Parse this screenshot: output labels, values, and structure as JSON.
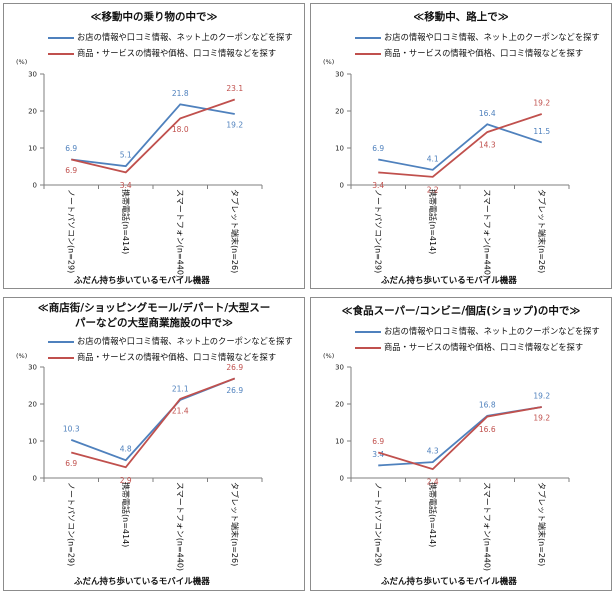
{
  "legend": {
    "s1": "お店の情報や口コミ情報、ネット上のクーポンなどを探す",
    "s2": "商品・サービスの情報や価格、口コミ情報などを探す"
  },
  "colors": {
    "s1": "#4f81bd",
    "s2": "#c0504d"
  },
  "x_title": "ふだん持ち歩いているモバイル機器",
  "chart_data": [
    {
      "type": "line",
      "title": "≪移動中の乗り物の中で≫",
      "ylabel": "(%)",
      "ylim": [
        0,
        30
      ],
      "yticks": [
        0,
        10,
        20,
        30
      ],
      "categories": [
        "ノートパソコン(n=29)",
        "携帯電話(n=414)",
        "スマートフォン(n=440)",
        "タブレット端末(n=26)"
      ],
      "series": [
        {
          "name": "お店の情報や口コミ情報、ネット上のクーポンなどを探す",
          "values": [
            6.9,
            5.1,
            21.8,
            19.2
          ]
        },
        {
          "name": "商品・サービスの情報や価格、口コミ情報などを探す",
          "values": [
            6.9,
            3.4,
            18.0,
            23.1
          ]
        }
      ]
    },
    {
      "type": "line",
      "title": "≪移動中、路上で≫",
      "ylabel": "(%)",
      "ylim": [
        0,
        30
      ],
      "yticks": [
        0,
        10,
        20,
        30
      ],
      "categories": [
        "ノートパソコン(n=29)",
        "携帯電話(n=414)",
        "スマートフォン(n=440)",
        "タブレット端末(n=26)"
      ],
      "series": [
        {
          "name": "お店の情報や口コミ情報、ネット上のクーポンなどを探す",
          "values": [
            6.9,
            4.1,
            16.4,
            11.5
          ]
        },
        {
          "name": "商品・サービスの情報や価格、口コミ情報などを探す",
          "values": [
            3.4,
            2.2,
            14.3,
            19.2
          ]
        }
      ]
    },
    {
      "type": "line",
      "title": "≪商店街/ショッピングモール/デパート/大型スーパーなどの大型商業施設の中で≫",
      "title_lines": [
        "≪商店街/ショッピングモール/デパート/大型スー",
        "パーなどの大型商業施設の中で≫"
      ],
      "ylabel": "(%)",
      "ylim": [
        0,
        30
      ],
      "yticks": [
        0,
        10,
        20,
        30
      ],
      "categories": [
        "ノートパソコン(n=29)",
        "携帯電話(n=414)",
        "スマートフォン(n=440)",
        "タブレット端末(n=26)"
      ],
      "series": [
        {
          "name": "お店の情報や口コミ情報、ネット上のクーポンなどを探す",
          "values": [
            10.3,
            4.8,
            21.1,
            26.9
          ]
        },
        {
          "name": "商品・サービスの情報や価格、口コミ情報などを探す",
          "values": [
            6.9,
            2.9,
            21.4,
            26.9
          ]
        }
      ]
    },
    {
      "type": "line",
      "title": "≪食品スーパー/コンビニ/個店(ショップ)の中で≫",
      "ylabel": "(%)",
      "ylim": [
        0,
        30
      ],
      "yticks": [
        0,
        10,
        20,
        30
      ],
      "categories": [
        "ノートパソコン(n=29)",
        "携帯電話(n=414)",
        "スマートフォン(n=440)",
        "タブレット端末(n=26)"
      ],
      "series": [
        {
          "name": "お店の情報や口コミ情報、ネット上のクーポンなどを探す",
          "values": [
            3.4,
            4.3,
            16.8,
            19.2
          ]
        },
        {
          "name": "商品・サービスの情報や価格、口コミ情報などを探す",
          "values": [
            6.9,
            2.4,
            16.6,
            19.2
          ]
        }
      ]
    }
  ]
}
